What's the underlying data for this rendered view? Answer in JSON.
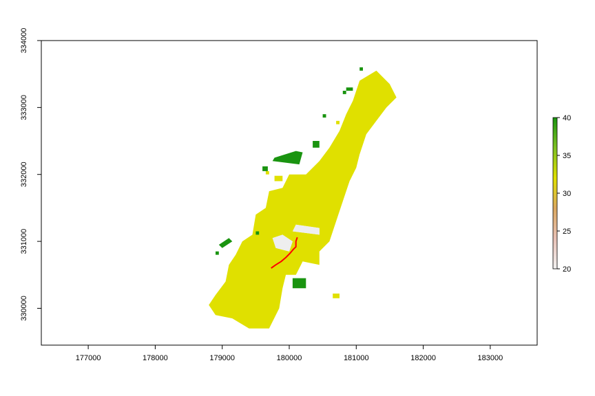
{
  "chart_data": {
    "type": "heatmap",
    "title": "",
    "xlabel": "",
    "ylabel": "",
    "xlim": [
      176300,
      183700
    ],
    "ylim": [
      329450,
      334000
    ],
    "x_ticks": [
      177000,
      178000,
      179000,
      180000,
      181000,
      182000,
      183000
    ],
    "x_tick_labels": [
      "177000",
      "178000",
      "179000",
      "180000",
      "181000",
      "182000",
      "183000"
    ],
    "y_ticks": [
      330000,
      331000,
      332000,
      333000,
      334000
    ],
    "y_tick_labels": [
      "330000",
      "331000",
      "332000",
      "333000",
      "334000"
    ],
    "legend": {
      "placement": "right",
      "min": 20,
      "max": 40,
      "ticks": [
        20,
        25,
        30,
        35,
        40
      ],
      "tick_labels": [
        "20",
        "25",
        "30",
        "35",
        "40"
      ],
      "colors": [
        "#f2f2f2",
        "#e8c1b6",
        "#dba860",
        "#e0e000",
        "#7ec022",
        "#1a9410"
      ]
    },
    "raster": {
      "main_value": 32,
      "main_color": "#e0e000",
      "green_value": 40,
      "green_color": "#1a9410",
      "low_value": 20,
      "low_color": "#eeeeee",
      "main_polygon": [
        [
          179150,
          329850
        ],
        [
          179400,
          329700
        ],
        [
          179700,
          329700
        ],
        [
          179850,
          330000
        ],
        [
          179900,
          330300
        ],
        [
          179950,
          330500
        ],
        [
          180100,
          330500
        ],
        [
          180200,
          330700
        ],
        [
          180450,
          330650
        ],
        [
          180450,
          330850
        ],
        [
          180600,
          331000
        ],
        [
          180700,
          331300
        ],
        [
          180800,
          331600
        ],
        [
          180900,
          331900
        ],
        [
          181000,
          332100
        ],
        [
          181050,
          332300
        ],
        [
          181150,
          332600
        ],
        [
          181300,
          332800
        ],
        [
          181450,
          333000
        ],
        [
          181600,
          333150
        ],
        [
          181500,
          333350
        ],
        [
          181300,
          333550
        ],
        [
          181050,
          333400
        ],
        [
          180950,
          333100
        ],
        [
          180850,
          332900
        ],
        [
          180750,
          332650
        ],
        [
          180600,
          332400
        ],
        [
          180450,
          332200
        ],
        [
          180250,
          332000
        ],
        [
          180000,
          332000
        ],
        [
          179900,
          331800
        ],
        [
          179700,
          331750
        ],
        [
          179650,
          331500
        ],
        [
          179500,
          331400
        ],
        [
          179450,
          331100
        ],
        [
          179300,
          331000
        ],
        [
          179200,
          330800
        ],
        [
          179100,
          330650
        ],
        [
          179050,
          330400
        ],
        [
          178900,
          330200
        ],
        [
          178800,
          330050
        ],
        [
          178900,
          329900
        ]
      ],
      "main_holes": [
        [
          [
            179800,
            330900
          ],
          [
            180000,
            330850
          ],
          [
            180050,
            331000
          ],
          [
            179900,
            331100
          ],
          [
            179750,
            331050
          ]
        ],
        [
          [
            180050,
            331150
          ],
          [
            180450,
            331100
          ],
          [
            180450,
            331200
          ],
          [
            180100,
            331250
          ]
        ]
      ],
      "main_extras": [
        [
          [
            179780,
            331900
          ],
          [
            179900,
            331900
          ],
          [
            179900,
            331980
          ],
          [
            179780,
            331980
          ]
        ],
        [
          [
            179650,
            332000
          ],
          [
            179700,
            332000
          ],
          [
            179700,
            332050
          ],
          [
            179650,
            332050
          ]
        ],
        [
          [
            180650,
            330220
          ],
          [
            180750,
            330220
          ],
          [
            180750,
            330150
          ],
          [
            180650,
            330150
          ]
        ],
        [
          [
            180700,
            332800
          ],
          [
            180750,
            332800
          ],
          [
            180750,
            332750
          ],
          [
            180700,
            332750
          ]
        ]
      ],
      "green_patches": [
        [
          [
            179750,
            332200
          ],
          [
            180150,
            332150
          ],
          [
            180200,
            332330
          ],
          [
            180100,
            332350
          ],
          [
            179780,
            332250
          ]
        ],
        [
          [
            179600,
            332050
          ],
          [
            179680,
            332050
          ],
          [
            179680,
            332120
          ],
          [
            179600,
            332120
          ]
        ],
        [
          [
            180350,
            332400
          ],
          [
            180450,
            332400
          ],
          [
            180450,
            332500
          ],
          [
            180350,
            332500
          ]
        ],
        [
          [
            181050,
            333550
          ],
          [
            181100,
            333550
          ],
          [
            181100,
            333600
          ],
          [
            181050,
            333600
          ]
        ],
        [
          [
            180850,
            333250
          ],
          [
            180950,
            333250
          ],
          [
            180950,
            333300
          ],
          [
            180850,
            333300
          ]
        ],
        [
          [
            180800,
            333200
          ],
          [
            180850,
            333200
          ],
          [
            180850,
            333250
          ],
          [
            180800,
            333250
          ]
        ],
        [
          [
            180050,
            330300
          ],
          [
            180250,
            330300
          ],
          [
            180250,
            330450
          ],
          [
            180050,
            330450
          ]
        ],
        [
          [
            179000,
            330900
          ],
          [
            179150,
            331000
          ],
          [
            179100,
            331050
          ],
          [
            178950,
            330950
          ]
        ],
        [
          [
            178900,
            330800
          ],
          [
            178950,
            330800
          ],
          [
            178950,
            330850
          ],
          [
            178900,
            330850
          ]
        ],
        [
          [
            179500,
            331100
          ],
          [
            179550,
            331100
          ],
          [
            179550,
            331150
          ],
          [
            179500,
            331150
          ]
        ],
        [
          [
            180500,
            332850
          ],
          [
            180550,
            332850
          ],
          [
            180550,
            332900
          ],
          [
            180500,
            332900
          ]
        ]
      ],
      "red_line": [
        [
          179730,
          330600
        ],
        [
          179800,
          330650
        ],
        [
          179880,
          330700
        ],
        [
          179950,
          330760
        ],
        [
          180010,
          330820
        ],
        [
          180060,
          330880
        ],
        [
          180100,
          330920
        ],
        [
          180100,
          331000
        ],
        [
          180120,
          331060
        ]
      ]
    }
  }
}
